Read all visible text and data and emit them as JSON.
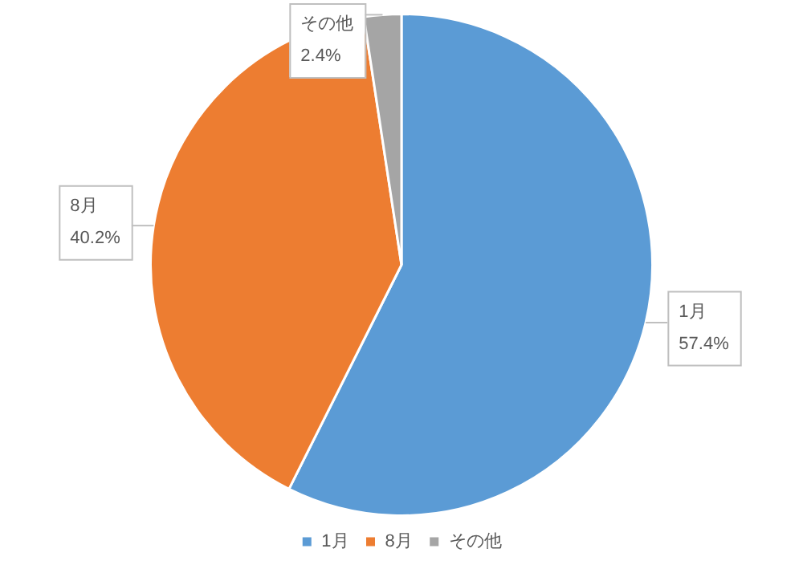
{
  "chart_data": {
    "type": "pie",
    "categories": [
      "1月",
      "8月",
      "その他"
    ],
    "values": [
      57.4,
      40.2,
      2.4
    ],
    "value_labels": [
      "57.4%",
      "40.2%",
      "2.4%"
    ],
    "colors": [
      "#5b9bd5",
      "#ed7d31",
      "#a5a5a5"
    ],
    "legend": "bottom"
  }
}
